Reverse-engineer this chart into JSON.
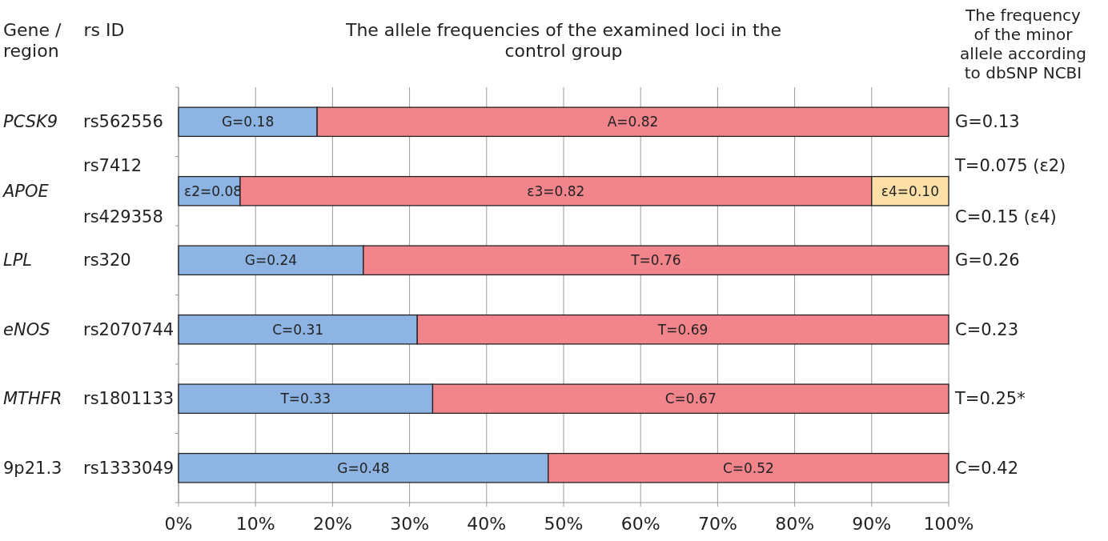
{
  "chart_data": {
    "type": "bar",
    "orientation": "horizontal",
    "stacked": true,
    "title": "The allele frequencies of the examined loci in the control group",
    "ylabel": "Gene / region",
    "categories": [
      "PCSK9",
      "APOE",
      "LPL",
      "eNOS",
      "MTHFR",
      "9p21.3"
    ],
    "series": [
      {
        "color": "#8db4e2",
        "values": [
          0.18,
          0.08,
          0.24,
          0.31,
          0.33,
          0.48
        ],
        "value_labels": [
          "G=0.18",
          "ε2=0.08",
          "G=0.24",
          "C=0.31",
          "T=0.33",
          "G=0.48"
        ]
      },
      {
        "color": "#f2858c",
        "values": [
          0.82,
          0.82,
          0.76,
          0.69,
          0.67,
          0.52
        ],
        "value_labels": [
          "A=0.82",
          "ε3=0.82",
          "T=0.76",
          "T=0.69",
          "C=0.67",
          "C=0.52"
        ]
      },
      {
        "color": "#fde0a8",
        "values": [
          null,
          0.1,
          null,
          null,
          null,
          null
        ],
        "value_labels": [
          null,
          "ε4=0.10",
          null,
          null,
          null,
          null
        ]
      }
    ],
    "xlim": [
      0,
      1
    ],
    "xticks": [
      {
        "value": 0,
        "label": "0%"
      },
      {
        "value": 0.1,
        "label": "10%"
      },
      {
        "value": 0.2,
        "label": "20%"
      },
      {
        "value": 0.3,
        "label": "30%"
      },
      {
        "value": 0.4,
        "label": "40%"
      },
      {
        "value": 0.5,
        "label": "50%"
      },
      {
        "value": 0.6,
        "label": "60%"
      },
      {
        "value": 0.7,
        "label": "70%"
      },
      {
        "value": 0.8,
        "label": "80%"
      },
      {
        "value": 0.9,
        "label": "90%"
      },
      {
        "value": 1,
        "label": "100%"
      }
    ],
    "grid": "x",
    "annotations": [
      "rs ID",
      "rs562556",
      "rs7412",
      "rs429358",
      "rs320",
      "rs2070744",
      "rs1801133",
      "rs1333049",
      "The frequency of the minor allele according to dbSNP NCBI",
      "G=0.13",
      "T=0.075 (ε2)",
      "C=0.15 (ε4)",
      "G=0.26",
      "C=0.23",
      "T=0.25*",
      "C=0.42"
    ]
  }
}
